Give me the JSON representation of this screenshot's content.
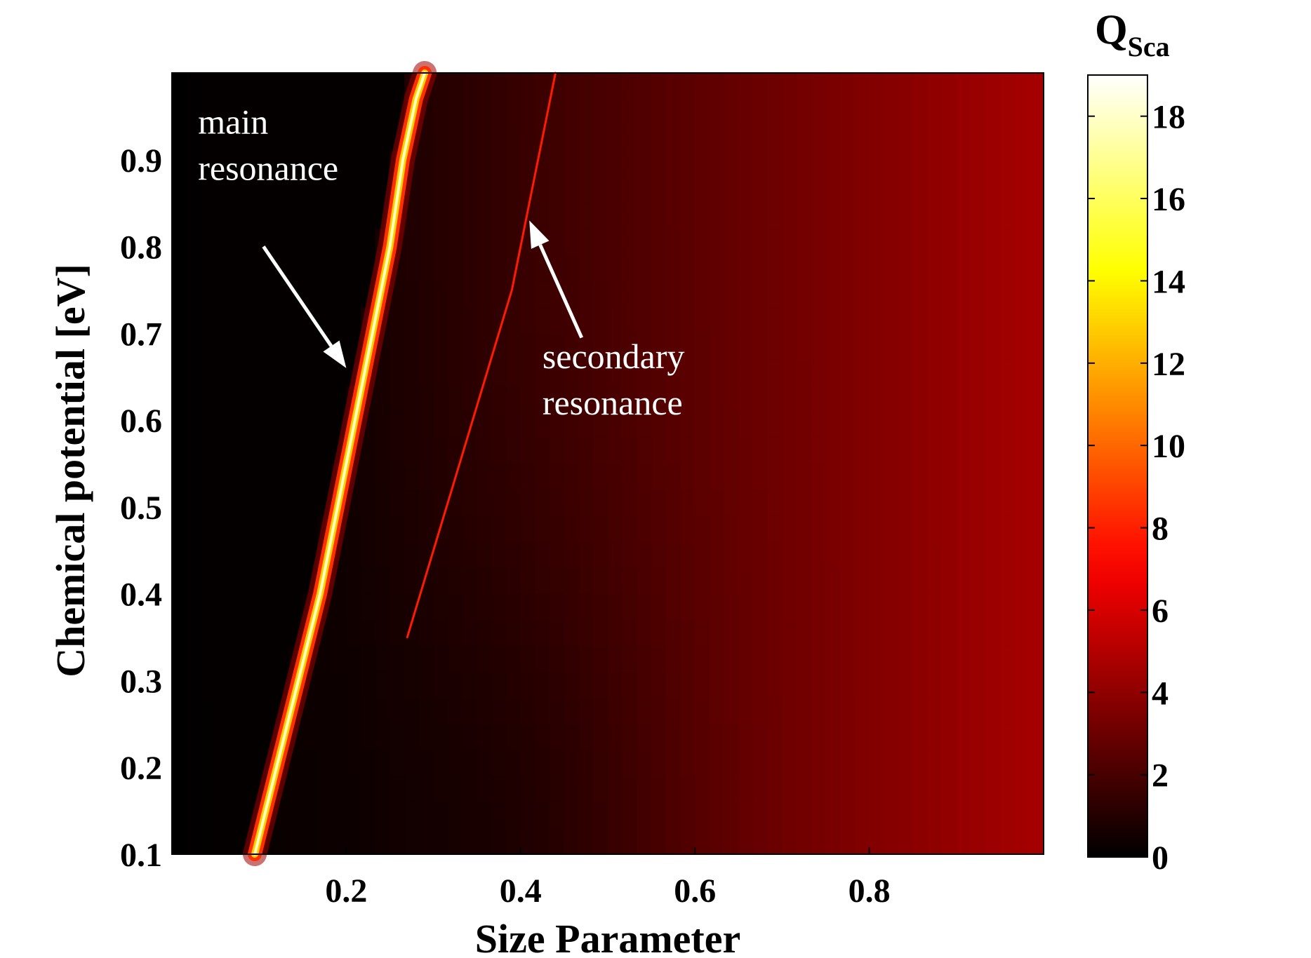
{
  "chart_data": {
    "type": "heatmap",
    "title": "",
    "xlabel": "Size Parameter",
    "ylabel": "Chemical potential [eV]",
    "xlim": [
      0.0,
      1.0
    ],
    "ylim": [
      0.1,
      1.0
    ],
    "x_ticks": [
      0.2,
      0.4,
      0.6,
      0.8
    ],
    "x_tick_labels": [
      "0.2",
      "0.4",
      "0.6",
      "0.8"
    ],
    "y_ticks": [
      0.1,
      0.2,
      0.3,
      0.4,
      0.5,
      0.6,
      0.7,
      0.8,
      0.9
    ],
    "y_tick_labels": [
      "0.1",
      "0.2",
      "0.3",
      "0.4",
      "0.5",
      "0.6",
      "0.7",
      "0.8",
      "0.9"
    ],
    "colorbar": {
      "label_main": "Q",
      "label_sub": "Sca",
      "range": [
        0,
        19
      ],
      "ticks": [
        0,
        2,
        4,
        6,
        8,
        10,
        12,
        14,
        16,
        18
      ],
      "tick_labels": [
        "0",
        "2",
        "4",
        "6",
        "8",
        "10",
        "12",
        "14",
        "16",
        "18"
      ],
      "colormap": "hot",
      "colors": [
        "#000000",
        "#ff0000",
        "#ffff00",
        "#ffffff"
      ]
    },
    "grid": false,
    "legend": "none",
    "curves": [
      {
        "label": "main resonance",
        "x": [
          0.095,
          0.12,
          0.145,
          0.17,
          0.19,
          0.21,
          0.23,
          0.25,
          0.265,
          0.28,
          0.29
        ],
        "y": [
          0.1,
          0.2,
          0.3,
          0.4,
          0.5,
          0.6,
          0.7,
          0.8,
          0.9,
          0.97,
          1.0
        ],
        "peak_value": 19
      },
      {
        "label": "secondary resonance",
        "x": [
          0.27,
          0.3,
          0.33,
          0.36,
          0.39,
          0.41,
          0.43,
          0.44
        ],
        "y": [
          0.35,
          0.45,
          0.55,
          0.65,
          0.75,
          0.85,
          0.95,
          1.0
        ],
        "peak_value": 7
      }
    ],
    "annotations": [
      {
        "lines": [
          "main",
          "resonance"
        ],
        "text_x": 0.03,
        "text_y": 0.93,
        "arrow_to_x": 0.2,
        "arrow_to_y": 0.66
      },
      {
        "lines": [
          "secondary",
          "resonance"
        ],
        "text_x": 0.425,
        "text_y": 0.66,
        "arrow_to_x": 0.41,
        "arrow_to_y": 0.83
      }
    ]
  }
}
